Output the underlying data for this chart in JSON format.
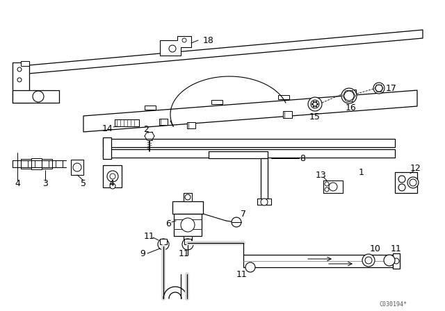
{
  "bg_color": "#ffffff",
  "line_color": "#000000",
  "fig_width": 6.4,
  "fig_height": 4.48,
  "dpi": 100,
  "watermark": "C030194*",
  "label_fontsize": 9,
  "lw": 0.8
}
